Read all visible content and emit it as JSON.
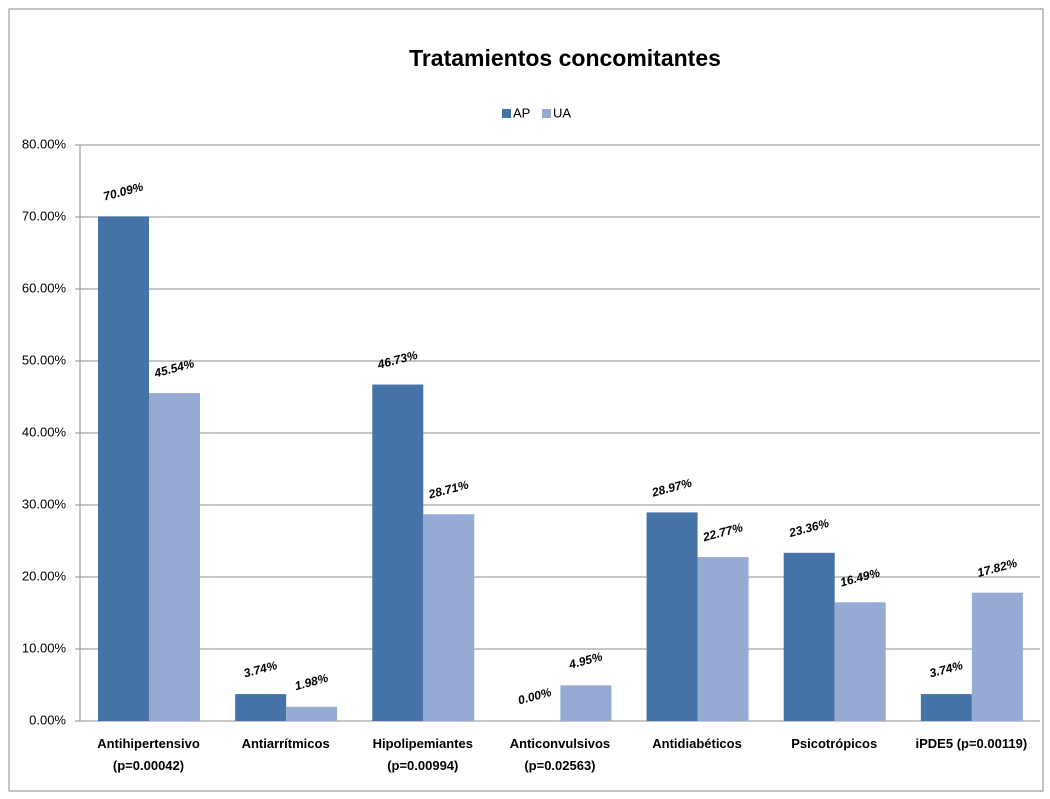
{
  "chart_data": {
    "type": "bar",
    "title": "Tratamientos concomitantes",
    "categories": [
      "Antihipertensivo\n(p=0.00042)",
      "Antiarrítmicos",
      "Hipolipemiantes\n(p=0.00994)",
      "Anticonvulsivos\n(p=0.02563)",
      "Antidiabéticos",
      "Psicotrópicos",
      "iPDE5 (p=0.00119)"
    ],
    "series": [
      {
        "name": "AP",
        "color": "#4572a7",
        "values": [
          70.09,
          3.74,
          46.73,
          0.0,
          28.97,
          23.36,
          3.74
        ],
        "value_labels": [
          "70.09%",
          "3.74%",
          "46.73%",
          "0.00%",
          "28.97%",
          "23.36%",
          "3.74%"
        ]
      },
      {
        "name": "UA",
        "color": "#95abd3",
        "values": [
          45.54,
          1.98,
          28.71,
          4.95,
          22.77,
          16.49,
          17.82
        ],
        "value_labels": [
          "45.54%",
          "1.98%",
          "28.71%",
          "4.95%",
          "22.77%",
          "16.49%",
          "17.82%"
        ]
      }
    ],
    "ylim": [
      0,
      80
    ],
    "yticks": [
      {
        "value": 0,
        "label": "0.00%"
      },
      {
        "value": 10,
        "label": "10.00%"
      },
      {
        "value": 20,
        "label": "20.00%"
      },
      {
        "value": 30,
        "label": "30.00%"
      },
      {
        "value": 40,
        "label": "40.00%"
      },
      {
        "value": 50,
        "label": "50.00%"
      },
      {
        "value": 60,
        "label": "60.00%"
      },
      {
        "value": 70,
        "label": "70.00%"
      },
      {
        "value": 80,
        "label": "80.00%"
      }
    ],
    "grid": true,
    "legend": "top"
  }
}
